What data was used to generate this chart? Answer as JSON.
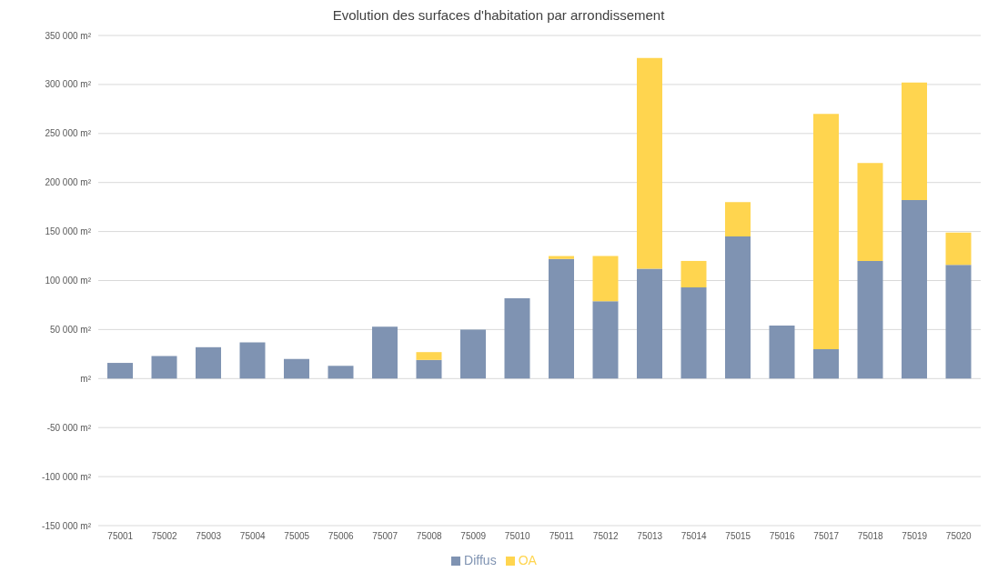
{
  "chart_data": {
    "type": "bar",
    "title": "Evolution des surfaces d'habitation par arrondissement",
    "stacked": true,
    "categories": [
      "75001",
      "75002",
      "75003",
      "75004",
      "75005",
      "75006",
      "75007",
      "75008",
      "75009",
      "75010",
      "75011",
      "75012",
      "75013",
      "75014",
      "75015",
      "75016",
      "75017",
      "75018",
      "75019",
      "75020"
    ],
    "series": [
      {
        "name": "Diffus",
        "color": "#7f93b2",
        "values": [
          16000,
          23000,
          32000,
          37000,
          20000,
          13000,
          53000,
          19000,
          50000,
          82000,
          122000,
          79000,
          112000,
          93000,
          145000,
          54000,
          30000,
          120000,
          182000,
          116000
        ]
      },
      {
        "name": "OA",
        "color": "#ffd54f",
        "values": [
          null,
          null,
          null,
          null,
          null,
          null,
          null,
          8000,
          null,
          null,
          3000,
          46000,
          215000,
          27000,
          35000,
          null,
          240000,
          100000,
          120000,
          33000
        ]
      }
    ],
    "ylim": [
      -150000,
      350000
    ],
    "yticks": [
      {
        "value": -150000,
        "label": "-150 000 m²"
      },
      {
        "value": -100000,
        "label": "-100 000 m²"
      },
      {
        "value": -50000,
        "label": "-50 000 m²"
      },
      {
        "value": 0,
        "label": "m²"
      },
      {
        "value": 50000,
        "label": "50 000 m²"
      },
      {
        "value": 100000,
        "label": "100 000 m²"
      },
      {
        "value": 150000,
        "label": "150 000 m²"
      },
      {
        "value": 200000,
        "label": "200 000 m²"
      },
      {
        "value": 250000,
        "label": "250 000 m²"
      },
      {
        "value": 300000,
        "label": "300 000 m²"
      },
      {
        "value": 350000,
        "label": "350 000 m²"
      }
    ],
    "grid": "y",
    "legend": "bottom"
  }
}
